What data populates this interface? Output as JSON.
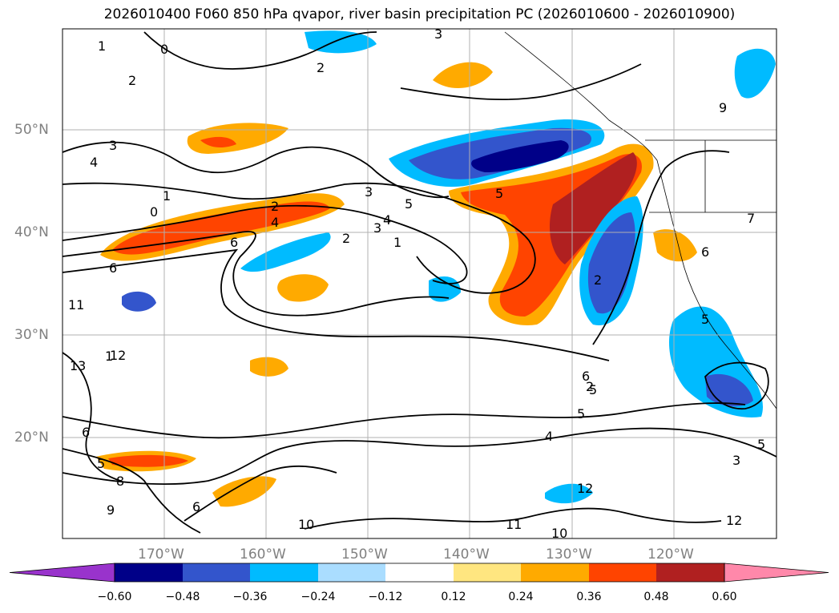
{
  "title": "2026010400 F060 850 hPa qvapor, river basin precipitation PC (2026010600 - 2026010900)",
  "map": {
    "lat_labels": [
      "50°N",
      "40°N",
      "30°N",
      "20°N"
    ],
    "lon_labels": [
      "170°W",
      "160°W",
      "150°W",
      "140°W",
      "130°W",
      "120°W"
    ],
    "contour_labels": [
      "1",
      "0",
      "2",
      "3",
      "2",
      "4",
      "3",
      "1",
      "0",
      "2",
      "3",
      "4",
      "5",
      "4",
      "6",
      "3",
      "2",
      "1",
      "6",
      "5",
      "6",
      "2",
      "1",
      "5",
      "4",
      "6",
      "5",
      "8",
      "9",
      "6",
      "10",
      "11",
      "10",
      "12",
      "12",
      "11",
      "12",
      "13",
      "9",
      "7",
      "6",
      "5",
      "2",
      "5",
      "5",
      "3"
    ]
  },
  "colorbar": {
    "ticks": [
      "−0.60",
      "−0.48",
      "−0.36",
      "−0.24",
      "−0.12",
      "0.12",
      "0.24",
      "0.36",
      "0.48",
      "0.60"
    ],
    "colors": [
      "#9933cc",
      "#000088",
      "#3355cc",
      "#00bbff",
      "#aaddff",
      "#ffffff",
      "#ffe680",
      "#ffaa00",
      "#ff4400",
      "#b02020",
      "#ff88aa",
      "#ff88aa"
    ],
    "levels": [
      -0.6,
      -0.48,
      -0.36,
      -0.24,
      -0.12,
      0.12,
      0.24,
      0.36,
      0.48,
      0.6
    ]
  }
}
